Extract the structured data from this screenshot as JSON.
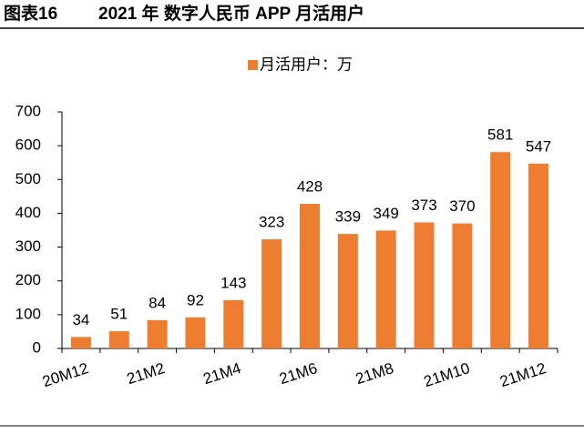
{
  "chart_data": {
    "type": "bar",
    "figure_label": "图表16",
    "title": "2021 年 数字人民币 APP 月活用户",
    "categories": [
      "20M12",
      null,
      "21M2",
      null,
      "21M4",
      null,
      "21M6",
      null,
      "21M8",
      null,
      "21M10",
      null,
      "21M12"
    ],
    "series": [
      {
        "name": "月活用户：万",
        "color": "#ED7D31",
        "values": [
          34,
          51,
          84,
          92,
          143,
          323,
          428,
          339,
          349,
          373,
          370,
          581,
          547
        ]
      }
    ],
    "ylim": [
      0,
      700
    ],
    "yticks": [
      0,
      100,
      200,
      300,
      400,
      500,
      600,
      700
    ],
    "grid": false,
    "legend": "top"
  }
}
